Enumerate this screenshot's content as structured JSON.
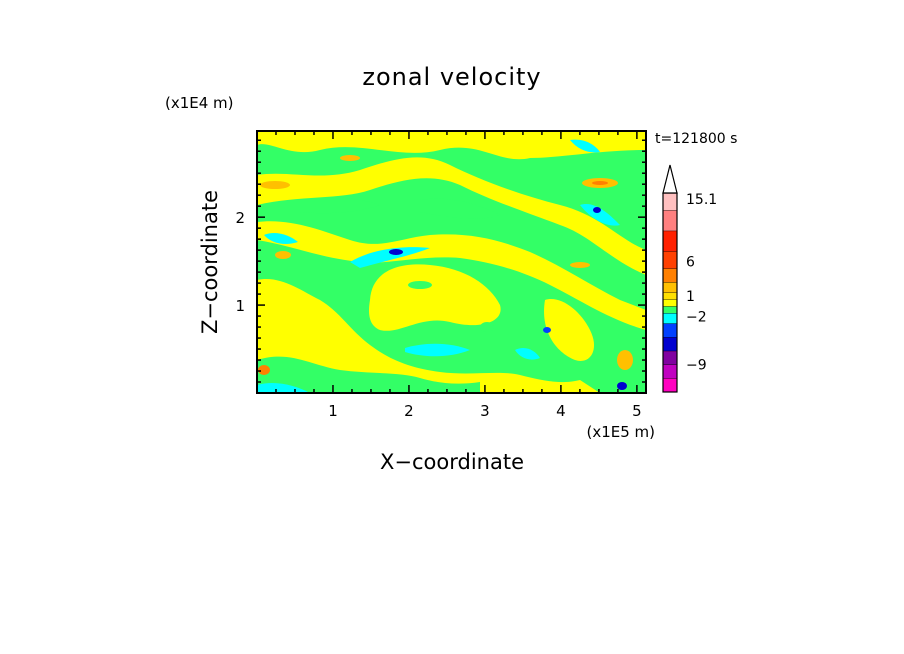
{
  "chart_data": {
    "type": "heatmap",
    "title": "zonal velocity",
    "xlabel": "X−coordinate",
    "ylabel": "Z−coordinate",
    "x_scale_label": "(x1E5 m)",
    "y_scale_label": "(x1E4 m)",
    "time_label": "t=121800 s",
    "xlim": [
      0,
      5.12
    ],
    "ylim": [
      0,
      2.98
    ],
    "x_ticks": [
      1,
      2,
      3,
      4,
      5
    ],
    "y_ticks": [
      1,
      2
    ],
    "colorbar": {
      "labels": [
        "15.1",
        "6",
        "1",
        "−2",
        "−9"
      ],
      "label_values": [
        15.1,
        6,
        1,
        -2,
        -9
      ],
      "bands": [
        {
          "color": "#ff00c0",
          "value": -12
        },
        {
          "color": "#c000c0",
          "value": -10
        },
        {
          "color": "#8000a0",
          "value": -8
        },
        {
          "color": "#0000d0",
          "value": -6
        },
        {
          "color": "#0040ff",
          "value": -4
        },
        {
          "color": "#00ffff",
          "value": -2
        },
        {
          "color": "#33ff66",
          "value": -1
        },
        {
          "color": "#ffff00",
          "value": 0
        },
        {
          "color": "#ffe000",
          "value": 1
        },
        {
          "color": "#ffc000",
          "value": 2
        },
        {
          "color": "#ff8000",
          "value": 4
        },
        {
          "color": "#ff4000",
          "value": 6
        },
        {
          "color": "#ff2000",
          "value": 9
        },
        {
          "color": "#ff8080",
          "value": 12
        },
        {
          "color": "#ffc0c0",
          "value": 15
        }
      ],
      "overflow_color": "#ffffff"
    }
  }
}
